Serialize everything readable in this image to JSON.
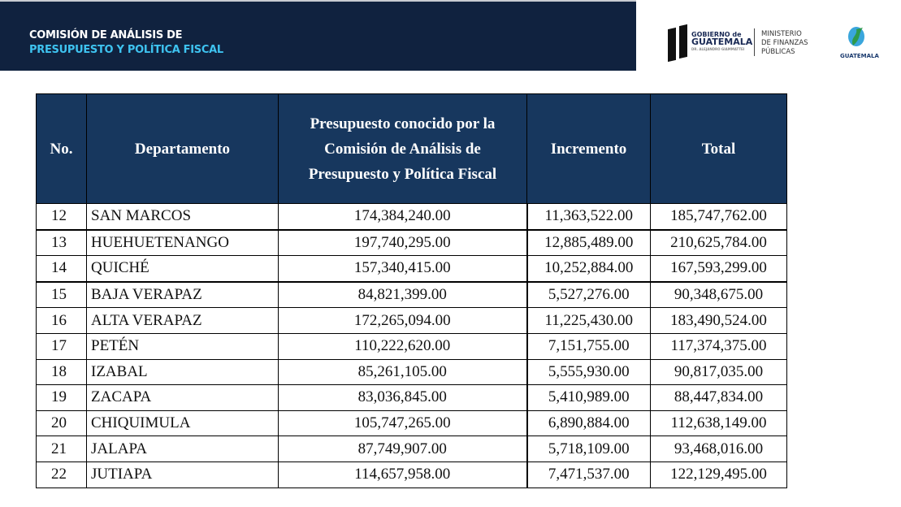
{
  "header": {
    "title_line1": "COMISIÓN DE ANÁLISIS DE",
    "title_line2": "PRESUPUESTO Y POLÍTICA FISCAL",
    "colors": {
      "banner": "#10223f",
      "accent": "#3ec3f0",
      "table_header": "#17375e"
    }
  },
  "logos": {
    "gobierno_line1": "GOBIERNO de",
    "gobierno_line2": "GUATEMALA",
    "gobierno_line3": "DR. ALEJANDRO GIAMMATTEI",
    "ministerio_line1": "MINISTERIO",
    "ministerio_line2": "DE FINANZAS",
    "ministerio_line3": "PÚBLICAS",
    "bicentenario": "GUATEMALA"
  },
  "table": {
    "columns": [
      "No.",
      "Departamento",
      "Presupuesto conocido por la Comisión de Análisis de Presupuesto y Política Fiscal",
      "Incremento",
      "Total"
    ],
    "rows": [
      [
        "12",
        "SAN MARCOS",
        "174,384,240.00",
        "11,363,522.00",
        "185,747,762.00"
      ],
      [
        "13",
        "HUEHUETENANGO",
        "197,740,295.00",
        "12,885,489.00",
        "210,625,784.00"
      ],
      [
        "14",
        "QUICHÉ",
        "157,340,415.00",
        "10,252,884.00",
        "167,593,299.00"
      ],
      [
        "15",
        "BAJA VERAPAZ",
        "84,821,399.00",
        "5,527,276.00",
        "90,348,675.00"
      ],
      [
        "16",
        "ALTA VERAPAZ",
        "172,265,094.00",
        "11,225,430.00",
        "183,490,524.00"
      ],
      [
        "17",
        "PETÉN",
        "110,222,620.00",
        "7,151,755.00",
        "117,374,375.00"
      ],
      [
        "18",
        "IZABAL",
        "85,261,105.00",
        "5,555,930.00",
        "90,817,035.00"
      ],
      [
        "19",
        "ZACAPA",
        "83,036,845.00",
        "5,410,989.00",
        "88,447,834.00"
      ],
      [
        "20",
        "CHIQUIMULA",
        "105,747,265.00",
        "6,890,884.00",
        "112,638,149.00"
      ],
      [
        "21",
        "JALAPA",
        "87,749,907.00",
        "5,718,109.00",
        "93,468,016.00"
      ],
      [
        "22",
        "JUTIAPA",
        "114,657,958.00",
        "7,471,537.00",
        "122,129,495.00"
      ]
    ]
  }
}
